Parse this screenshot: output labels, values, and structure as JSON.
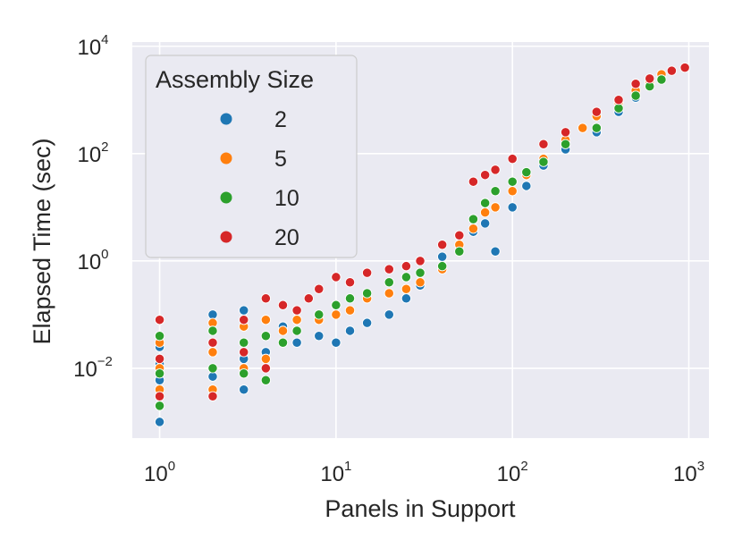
{
  "chart_data": {
    "type": "scatter",
    "title": "",
    "xlabel": "Panels in Support",
    "ylabel": "Elapsed Time (sec)",
    "xscale": "log",
    "yscale": "log",
    "xlim": [
      0.7,
      1300
    ],
    "ylim": [
      0.0005,
      12000
    ],
    "xticks": [
      {
        "base": "10",
        "exp": "0",
        "value": 1
      },
      {
        "base": "10",
        "exp": "1",
        "value": 10
      },
      {
        "base": "10",
        "exp": "2",
        "value": 100
      },
      {
        "base": "10",
        "exp": "3",
        "value": 1000
      }
    ],
    "yticks": [
      {
        "base": "10",
        "exp": "−2",
        "value": 0.01
      },
      {
        "base": "10",
        "exp": "0",
        "value": 1
      },
      {
        "base": "10",
        "exp": "2",
        "value": 100
      },
      {
        "base": "10",
        "exp": "4",
        "value": 10000
      }
    ],
    "grid": true,
    "legend": {
      "title": "Assembly Size",
      "placement": "upper-left",
      "entries": [
        {
          "label": "2",
          "color": "#1f77b4"
        },
        {
          "label": "5",
          "color": "#ff7f0e"
        },
        {
          "label": "10",
          "color": "#2ca02c"
        },
        {
          "label": "20",
          "color": "#d62728"
        }
      ]
    },
    "series": [
      {
        "name": "2",
        "color": "#1f77b4",
        "points": [
          [
            1,
            0.001
          ],
          [
            1,
            0.006
          ],
          [
            1,
            0.012
          ],
          [
            1,
            0.025
          ],
          [
            2,
            0.007
          ],
          [
            2,
            0.02
          ],
          [
            2,
            0.1
          ],
          [
            3,
            0.004
          ],
          [
            3,
            0.015
          ],
          [
            3,
            0.12
          ],
          [
            4,
            0.02
          ],
          [
            5,
            0.06
          ],
          [
            6,
            0.03
          ],
          [
            8,
            0.04
          ],
          [
            10,
            0.03
          ],
          [
            12,
            0.05
          ],
          [
            15,
            0.07
          ],
          [
            20,
            0.1
          ],
          [
            25,
            0.2
          ],
          [
            30,
            0.35
          ],
          [
            40,
            1.2
          ],
          [
            50,
            3
          ],
          [
            60,
            3.5
          ],
          [
            70,
            5
          ],
          [
            80,
            1.5
          ],
          [
            100,
            10
          ],
          [
            120,
            25
          ],
          [
            150,
            60
          ],
          [
            200,
            120
          ],
          [
            300,
            250
          ],
          [
            400,
            600
          ],
          [
            500,
            1100
          ],
          [
            600,
            2000
          ],
          [
            700,
            2500
          ]
        ]
      },
      {
        "name": "5",
        "color": "#ff7f0e",
        "points": [
          [
            1,
            0.004
          ],
          [
            1,
            0.01
          ],
          [
            1,
            0.03
          ],
          [
            2,
            0.004
          ],
          [
            2,
            0.02
          ],
          [
            2,
            0.07
          ],
          [
            3,
            0.01
          ],
          [
            3,
            0.06
          ],
          [
            4,
            0.015
          ],
          [
            4,
            0.08
          ],
          [
            5,
            0.05
          ],
          [
            6,
            0.08
          ],
          [
            8,
            0.08
          ],
          [
            10,
            0.1
          ],
          [
            12,
            0.12
          ],
          [
            15,
            0.2
          ],
          [
            20,
            0.25
          ],
          [
            25,
            0.3
          ],
          [
            30,
            0.4
          ],
          [
            40,
            0.7
          ],
          [
            50,
            2
          ],
          [
            60,
            4
          ],
          [
            70,
            8
          ],
          [
            80,
            10
          ],
          [
            100,
            20
          ],
          [
            120,
            40
          ],
          [
            150,
            80
          ],
          [
            200,
            180
          ],
          [
            250,
            300
          ],
          [
            300,
            500
          ],
          [
            400,
            900
          ],
          [
            500,
            1500
          ],
          [
            600,
            2200
          ],
          [
            700,
            3000
          ]
        ]
      },
      {
        "name": "10",
        "color": "#2ca02c",
        "points": [
          [
            1,
            0.002
          ],
          [
            1,
            0.008
          ],
          [
            1,
            0.04
          ],
          [
            2,
            0.01
          ],
          [
            2,
            0.05
          ],
          [
            3,
            0.008
          ],
          [
            3,
            0.03
          ],
          [
            4,
            0.006
          ],
          [
            4,
            0.04
          ],
          [
            5,
            0.03
          ],
          [
            6,
            0.05
          ],
          [
            8,
            0.1
          ],
          [
            10,
            0.15
          ],
          [
            12,
            0.2
          ],
          [
            15,
            0.25
          ],
          [
            20,
            0.4
          ],
          [
            25,
            0.5
          ],
          [
            30,
            0.6
          ],
          [
            40,
            0.8
          ],
          [
            50,
            1.5
          ],
          [
            60,
            6
          ],
          [
            70,
            12
          ],
          [
            80,
            20
          ],
          [
            100,
            30
          ],
          [
            120,
            45
          ],
          [
            150,
            70
          ],
          [
            200,
            150
          ],
          [
            300,
            300
          ],
          [
            400,
            700
          ],
          [
            500,
            1200
          ],
          [
            600,
            1800
          ],
          [
            700,
            2400
          ]
        ]
      },
      {
        "name": "20",
        "color": "#d62728",
        "points": [
          [
            1,
            0.003
          ],
          [
            1,
            0.015
          ],
          [
            1,
            0.08
          ],
          [
            2,
            0.003
          ],
          [
            2,
            0.03
          ],
          [
            3,
            0.02
          ],
          [
            3,
            0.08
          ],
          [
            4,
            0.01
          ],
          [
            4,
            0.2
          ],
          [
            5,
            0.15
          ],
          [
            6,
            0.12
          ],
          [
            7,
            0.2
          ],
          [
            8,
            0.3
          ],
          [
            10,
            0.5
          ],
          [
            12,
            0.4
          ],
          [
            15,
            0.6
          ],
          [
            20,
            0.7
          ],
          [
            25,
            0.8
          ],
          [
            30,
            1
          ],
          [
            40,
            2
          ],
          [
            50,
            3
          ],
          [
            60,
            30
          ],
          [
            70,
            40
          ],
          [
            80,
            50
          ],
          [
            100,
            80
          ],
          [
            150,
            150
          ],
          [
            200,
            250
          ],
          [
            300,
            600
          ],
          [
            400,
            1000
          ],
          [
            500,
            2000
          ],
          [
            600,
            2500
          ],
          [
            800,
            3500
          ],
          [
            950,
            4000
          ]
        ]
      }
    ]
  }
}
